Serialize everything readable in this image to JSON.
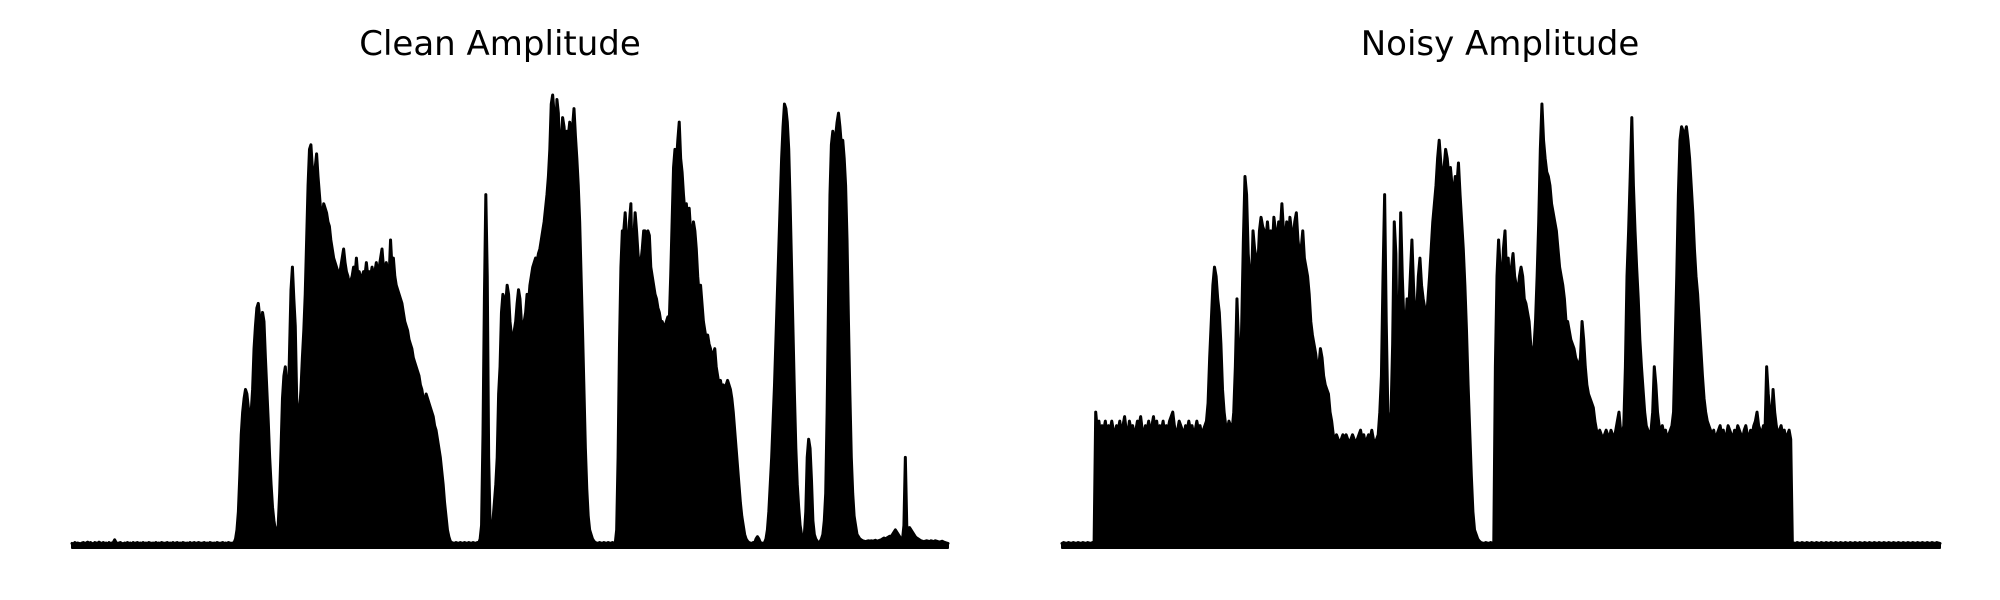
{
  "chart_data": [
    {
      "type": "area",
      "title": "Clean Amplitude",
      "axes_visible": false,
      "grid": false,
      "color": "#000000",
      "x_range": [
        0,
        1000
      ],
      "ylim": [
        0,
        1.0
      ],
      "y": [
        0.01,
        0.009,
        0.012,
        0.01,
        0.011,
        0.01,
        0.009,
        0.011,
        0.012,
        0.01,
        0.011,
        0.013,
        0.01,
        0.012,
        0.01,
        0.009,
        0.012,
        0.011,
        0.01,
        0.013,
        0.011,
        0.01,
        0.012,
        0.01,
        0.011,
        0.009,
        0.012,
        0.01,
        0.011,
        0.012,
        0.018,
        0.012,
        0.01,
        0.011,
        0.012,
        0.01,
        0.009,
        0.011,
        0.01,
        0.012,
        0.01,
        0.011,
        0.009,
        0.012,
        0.01,
        0.011,
        0.012,
        0.01,
        0.011,
        0.01,
        0.012,
        0.01,
        0.011,
        0.01,
        0.012,
        0.011,
        0.01,
        0.011,
        0.01,
        0.012,
        0.01,
        0.011,
        0.01,
        0.012,
        0.011,
        0.01,
        0.011,
        0.012,
        0.01,
        0.011,
        0.01,
        0.012,
        0.01,
        0.011,
        0.012,
        0.01,
        0.011,
        0.01,
        0.012,
        0.011,
        0.01,
        0.011,
        0.01,
        0.012,
        0.01,
        0.011,
        0.012,
        0.01,
        0.011,
        0.012,
        0.011,
        0.01,
        0.011,
        0.012,
        0.01,
        0.011,
        0.01,
        0.012,
        0.011,
        0.01,
        0.011,
        0.01,
        0.012,
        0.011,
        0.01,
        0.011,
        0.012,
        0.01,
        0.011,
        0.01,
        0.012,
        0.011,
        0.01,
        0.011,
        0.012,
        0.02,
        0.04,
        0.08,
        0.16,
        0.25,
        0.3,
        0.33,
        0.35,
        0.34,
        0.31,
        0.28,
        0.3,
        0.35,
        0.44,
        0.49,
        0.53,
        0.54,
        0.51,
        0.47,
        0.52,
        0.5,
        0.42,
        0.35,
        0.28,
        0.2,
        0.14,
        0.09,
        0.06,
        0.04,
        0.03,
        0.05,
        0.12,
        0.22,
        0.33,
        0.38,
        0.4,
        0.36,
        0.3,
        0.44,
        0.57,
        0.62,
        0.55,
        0.49,
        0.33,
        0.28,
        0.3,
        0.35,
        0.42,
        0.48,
        0.56,
        0.68,
        0.8,
        0.88,
        0.89,
        0.84,
        0.79,
        0.84,
        0.87,
        0.82,
        0.78,
        0.74,
        0.73,
        0.76,
        0.75,
        0.74,
        0.72,
        0.71,
        0.68,
        0.66,
        0.64,
        0.63,
        0.62,
        0.61,
        0.6,
        0.62,
        0.64,
        0.66,
        0.63,
        0.61,
        0.6,
        0.58,
        0.59,
        0.6,
        0.62,
        0.6,
        0.64,
        0.6,
        0.61,
        0.59,
        0.6,
        0.61,
        0.6,
        0.63,
        0.6,
        0.61,
        0.6,
        0.62,
        0.6,
        0.61,
        0.63,
        0.6,
        0.62,
        0.64,
        0.66,
        0.62,
        0.6,
        0.63,
        0.61,
        0.6,
        0.68,
        0.62,
        0.64,
        0.6,
        0.58,
        0.57,
        0.56,
        0.55,
        0.54,
        0.52,
        0.5,
        0.49,
        0.48,
        0.46,
        0.45,
        0.44,
        0.42,
        0.41,
        0.4,
        0.39,
        0.38,
        0.36,
        0.35,
        0.33,
        0.32,
        0.34,
        0.33,
        0.32,
        0.31,
        0.3,
        0.29,
        0.27,
        0.26,
        0.24,
        0.22,
        0.2,
        0.17,
        0.14,
        0.1,
        0.07,
        0.04,
        0.025,
        0.015,
        0.012,
        0.011,
        0.01,
        0.012,
        0.011,
        0.01,
        0.012,
        0.011,
        0.01,
        0.012,
        0.011,
        0.01,
        0.012,
        0.011,
        0.01,
        0.012,
        0.011,
        0.01,
        0.012,
        0.011,
        0.02,
        0.05,
        0.25,
        0.55,
        0.78,
        0.6,
        0.2,
        0.05,
        0.03,
        0.06,
        0.1,
        0.14,
        0.2,
        0.34,
        0.4,
        0.52,
        0.56,
        0.55,
        0.54,
        0.58,
        0.56,
        0.5,
        0.47,
        0.45,
        0.48,
        0.5,
        0.54,
        0.57,
        0.55,
        0.5,
        0.48,
        0.5,
        0.52,
        0.56,
        0.54,
        0.58,
        0.6,
        0.62,
        0.63,
        0.64,
        0.63,
        0.65,
        0.66,
        0.68,
        0.7,
        0.72,
        0.75,
        0.78,
        0.82,
        0.88,
        0.98,
        1.0,
        0.96,
        0.9,
        0.99,
        0.96,
        0.85,
        0.9,
        0.95,
        0.93,
        0.89,
        0.92,
        0.91,
        0.94,
        0.9,
        0.93,
        0.97,
        0.91,
        0.86,
        0.8,
        0.72,
        0.6,
        0.48,
        0.35,
        0.22,
        0.13,
        0.07,
        0.04,
        0.03,
        0.02,
        0.015,
        0.012,
        0.011,
        0.01,
        0.012,
        0.011,
        0.01,
        0.012,
        0.011,
        0.01,
        0.012,
        0.011,
        0.01,
        0.012,
        0.011,
        0.01,
        0.04,
        0.2,
        0.45,
        0.62,
        0.7,
        0.7,
        0.74,
        0.68,
        0.64,
        0.72,
        0.76,
        0.6,
        0.68,
        0.74,
        0.7,
        0.65,
        0.62,
        0.63,
        0.66,
        0.7,
        0.7,
        0.68,
        0.7,
        0.69,
        0.62,
        0.6,
        0.58,
        0.56,
        0.55,
        0.53,
        0.52,
        0.5,
        0.5,
        0.49,
        0.49,
        0.5,
        0.51,
        0.5,
        0.6,
        0.72,
        0.84,
        0.88,
        0.85,
        0.9,
        0.94,
        0.86,
        0.83,
        0.78,
        0.74,
        0.76,
        0.72,
        0.75,
        0.7,
        0.68,
        0.72,
        0.7,
        0.66,
        0.6,
        0.56,
        0.58,
        0.54,
        0.5,
        0.48,
        0.46,
        0.47,
        0.45,
        0.44,
        0.42,
        0.43,
        0.44,
        0.4,
        0.38,
        0.36,
        0.37,
        0.35,
        0.36,
        0.35,
        0.36,
        0.37,
        0.36,
        0.35,
        0.33,
        0.3,
        0.26,
        0.22,
        0.18,
        0.14,
        0.1,
        0.07,
        0.05,
        0.03,
        0.02,
        0.015,
        0.012,
        0.011,
        0.01,
        0.012,
        0.011,
        0.02,
        0.025,
        0.02,
        0.012,
        0.011,
        0.01,
        0.012,
        0.02,
        0.04,
        0.08,
        0.14,
        0.2,
        0.28,
        0.36,
        0.46,
        0.56,
        0.66,
        0.76,
        0.86,
        0.93,
        0.98,
        0.97,
        0.94,
        0.88,
        0.76,
        0.62,
        0.48,
        0.34,
        0.22,
        0.14,
        0.09,
        0.05,
        0.03,
        0.02,
        0.03,
        0.08,
        0.2,
        0.24,
        0.22,
        0.15,
        0.06,
        0.03,
        0.02,
        0.015,
        0.012,
        0.014,
        0.02,
        0.03,
        0.06,
        0.12,
        0.3,
        0.55,
        0.78,
        0.89,
        0.92,
        0.88,
        0.91,
        0.94,
        0.96,
        0.93,
        0.89,
        0.9,
        0.86,
        0.8,
        0.68,
        0.5,
        0.34,
        0.2,
        0.12,
        0.07,
        0.05,
        0.03,
        0.025,
        0.02,
        0.018,
        0.016,
        0.015,
        0.014,
        0.015,
        0.016,
        0.015,
        0.016,
        0.015,
        0.016,
        0.017,
        0.015,
        0.016,
        0.017,
        0.018,
        0.02,
        0.022,
        0.02,
        0.022,
        0.024,
        0.026,
        0.025,
        0.03,
        0.035,
        0.04,
        0.035,
        0.03,
        0.025,
        0.02,
        0.018,
        0.05,
        0.2,
        0.05,
        0.03,
        0.045,
        0.04,
        0.035,
        0.03,
        0.025,
        0.022,
        0.02,
        0.018,
        0.016,
        0.015,
        0.014,
        0.015,
        0.016,
        0.015,
        0.014,
        0.016,
        0.015,
        0.014,
        0.016,
        0.015,
        0.014,
        0.013,
        0.014,
        0.015,
        0.013,
        0.012,
        0.011,
        0.01
      ]
    },
    {
      "type": "area",
      "title": "Noisy Amplitude",
      "axes_visible": false,
      "grid": false,
      "color": "#000000",
      "x_range": [
        0,
        1000
      ],
      "ylim": [
        0,
        1.0
      ],
      "y": [
        0.01,
        0.012,
        0.011,
        0.01,
        0.012,
        0.011,
        0.01,
        0.012,
        0.011,
        0.01,
        0.012,
        0.011,
        0.01,
        0.012,
        0.011,
        0.01,
        0.012,
        0.011,
        0.01,
        0.012,
        0.011,
        0.3,
        0.26,
        0.28,
        0.25,
        0.27,
        0.26,
        0.28,
        0.25,
        0.27,
        0.26,
        0.28,
        0.26,
        0.25,
        0.27,
        0.26,
        0.28,
        0.25,
        0.27,
        0.29,
        0.26,
        0.25,
        0.28,
        0.26,
        0.27,
        0.25,
        0.26,
        0.28,
        0.27,
        0.29,
        0.26,
        0.25,
        0.27,
        0.26,
        0.28,
        0.25,
        0.27,
        0.29,
        0.26,
        0.28,
        0.25,
        0.27,
        0.26,
        0.28,
        0.25,
        0.27,
        0.26,
        0.28,
        0.29,
        0.3,
        0.27,
        0.25,
        0.26,
        0.28,
        0.27,
        0.26,
        0.25,
        0.27,
        0.26,
        0.28,
        0.26,
        0.27,
        0.25,
        0.26,
        0.28,
        0.26,
        0.27,
        0.25,
        0.26,
        0.27,
        0.28,
        0.32,
        0.42,
        0.5,
        0.58,
        0.62,
        0.6,
        0.55,
        0.52,
        0.45,
        0.35,
        0.3,
        0.27,
        0.26,
        0.28,
        0.27,
        0.26,
        0.3,
        0.4,
        0.55,
        0.45,
        0.35,
        0.5,
        0.68,
        0.82,
        0.78,
        0.65,
        0.6,
        0.58,
        0.7,
        0.66,
        0.64,
        0.62,
        0.7,
        0.73,
        0.71,
        0.7,
        0.68,
        0.72,
        0.68,
        0.7,
        0.66,
        0.73,
        0.7,
        0.68,
        0.72,
        0.7,
        0.76,
        0.7,
        0.68,
        0.72,
        0.67,
        0.73,
        0.7,
        0.68,
        0.72,
        0.74,
        0.68,
        0.65,
        0.66,
        0.7,
        0.64,
        0.62,
        0.6,
        0.56,
        0.5,
        0.47,
        0.45,
        0.43,
        0.4,
        0.4,
        0.44,
        0.42,
        0.38,
        0.36,
        0.35,
        0.34,
        0.3,
        0.28,
        0.25,
        0.24,
        0.25,
        0.24,
        0.23,
        0.24,
        0.25,
        0.24,
        0.25,
        0.24,
        0.23,
        0.24,
        0.25,
        0.24,
        0.23,
        0.24,
        0.25,
        0.26,
        0.24,
        0.25,
        0.23,
        0.24,
        0.25,
        0.24,
        0.26,
        0.24,
        0.23,
        0.24,
        0.25,
        0.3,
        0.38,
        0.6,
        0.78,
        0.5,
        0.3,
        0.25,
        0.3,
        0.45,
        0.72,
        0.65,
        0.4,
        0.5,
        0.74,
        0.6,
        0.5,
        0.48,
        0.55,
        0.52,
        0.6,
        0.68,
        0.58,
        0.5,
        0.52,
        0.6,
        0.64,
        0.58,
        0.55,
        0.53,
        0.5,
        0.55,
        0.6,
        0.66,
        0.72,
        0.76,
        0.8,
        0.86,
        0.9,
        0.85,
        0.8,
        0.84,
        0.88,
        0.86,
        0.82,
        0.84,
        0.8,
        0.78,
        0.82,
        0.8,
        0.85,
        0.78,
        0.72,
        0.66,
        0.58,
        0.48,
        0.36,
        0.26,
        0.16,
        0.08,
        0.04,
        0.03,
        0.02,
        0.015,
        0.012,
        0.011,
        0.01,
        0.012,
        0.011,
        0.01,
        0.012,
        0.011,
        0.01,
        0.4,
        0.6,
        0.68,
        0.62,
        0.56,
        0.66,
        0.7,
        0.6,
        0.64,
        0.55,
        0.62,
        0.65,
        0.6,
        0.58,
        0.56,
        0.6,
        0.62,
        0.6,
        0.55,
        0.54,
        0.52,
        0.5,
        0.45,
        0.42,
        0.44,
        0.5,
        0.6,
        0.72,
        0.88,
        0.98,
        0.9,
        0.86,
        0.83,
        0.82,
        0.8,
        0.76,
        0.74,
        0.72,
        0.7,
        0.66,
        0.62,
        0.6,
        0.58,
        0.55,
        0.5,
        0.5,
        0.48,
        0.46,
        0.45,
        0.44,
        0.42,
        0.41,
        0.4,
        0.42,
        0.5,
        0.46,
        0.4,
        0.36,
        0.34,
        0.33,
        0.32,
        0.31,
        0.28,
        0.26,
        0.25,
        0.26,
        0.25,
        0.24,
        0.25,
        0.26,
        0.25,
        0.24,
        0.26,
        0.25,
        0.24,
        0.26,
        0.28,
        0.3,
        0.26,
        0.25,
        0.27,
        0.4,
        0.6,
        0.7,
        0.82,
        0.95,
        0.8,
        0.7,
        0.62,
        0.55,
        0.46,
        0.4,
        0.35,
        0.3,
        0.27,
        0.26,
        0.25,
        0.26,
        0.3,
        0.4,
        0.36,
        0.3,
        0.27,
        0.26,
        0.27,
        0.25,
        0.26,
        0.24,
        0.25,
        0.26,
        0.27,
        0.3,
        0.45,
        0.6,
        0.78,
        0.9,
        0.93,
        0.92,
        0.91,
        0.93,
        0.9,
        0.86,
        0.8,
        0.74,
        0.66,
        0.6,
        0.56,
        0.5,
        0.44,
        0.38,
        0.33,
        0.3,
        0.28,
        0.27,
        0.26,
        0.25,
        0.26,
        0.24,
        0.25,
        0.26,
        0.27,
        0.25,
        0.26,
        0.24,
        0.25,
        0.27,
        0.26,
        0.25,
        0.24,
        0.26,
        0.25,
        0.27,
        0.26,
        0.25,
        0.24,
        0.26,
        0.27,
        0.25,
        0.24,
        0.26,
        0.25,
        0.27,
        0.28,
        0.3,
        0.27,
        0.26,
        0.25,
        0.27,
        0.26,
        0.4,
        0.34,
        0.3,
        0.28,
        0.35,
        0.3,
        0.27,
        0.25,
        0.26,
        0.27,
        0.25,
        0.26,
        0.24,
        0.25,
        0.26,
        0.24,
        0.012,
        0.011,
        0.01,
        0.012,
        0.011,
        0.01,
        0.012,
        0.011,
        0.01,
        0.012,
        0.011,
        0.01,
        0.012,
        0.011,
        0.01,
        0.012,
        0.011,
        0.01,
        0.012,
        0.011,
        0.01,
        0.012,
        0.011,
        0.01,
        0.012,
        0.011,
        0.01,
        0.012,
        0.011,
        0.01,
        0.012,
        0.011,
        0.01,
        0.012,
        0.011,
        0.01,
        0.012,
        0.011,
        0.01,
        0.012,
        0.011,
        0.01,
        0.012,
        0.011,
        0.01,
        0.012,
        0.011,
        0.01,
        0.012,
        0.011,
        0.01,
        0.012,
        0.011,
        0.01,
        0.012,
        0.011,
        0.01,
        0.012,
        0.011,
        0.01,
        0.012,
        0.011,
        0.01,
        0.012,
        0.011,
        0.01,
        0.012,
        0.011,
        0.01,
        0.012,
        0.011,
        0.01,
        0.012,
        0.011,
        0.01,
        0.012,
        0.011,
        0.01,
        0.012,
        0.011,
        0.01,
        0.012,
        0.011,
        0.01,
        0.012,
        0.011,
        0.01,
        0.012,
        0.011,
        0.01,
        0.012,
        0.011,
        0.01
      ]
    }
  ]
}
